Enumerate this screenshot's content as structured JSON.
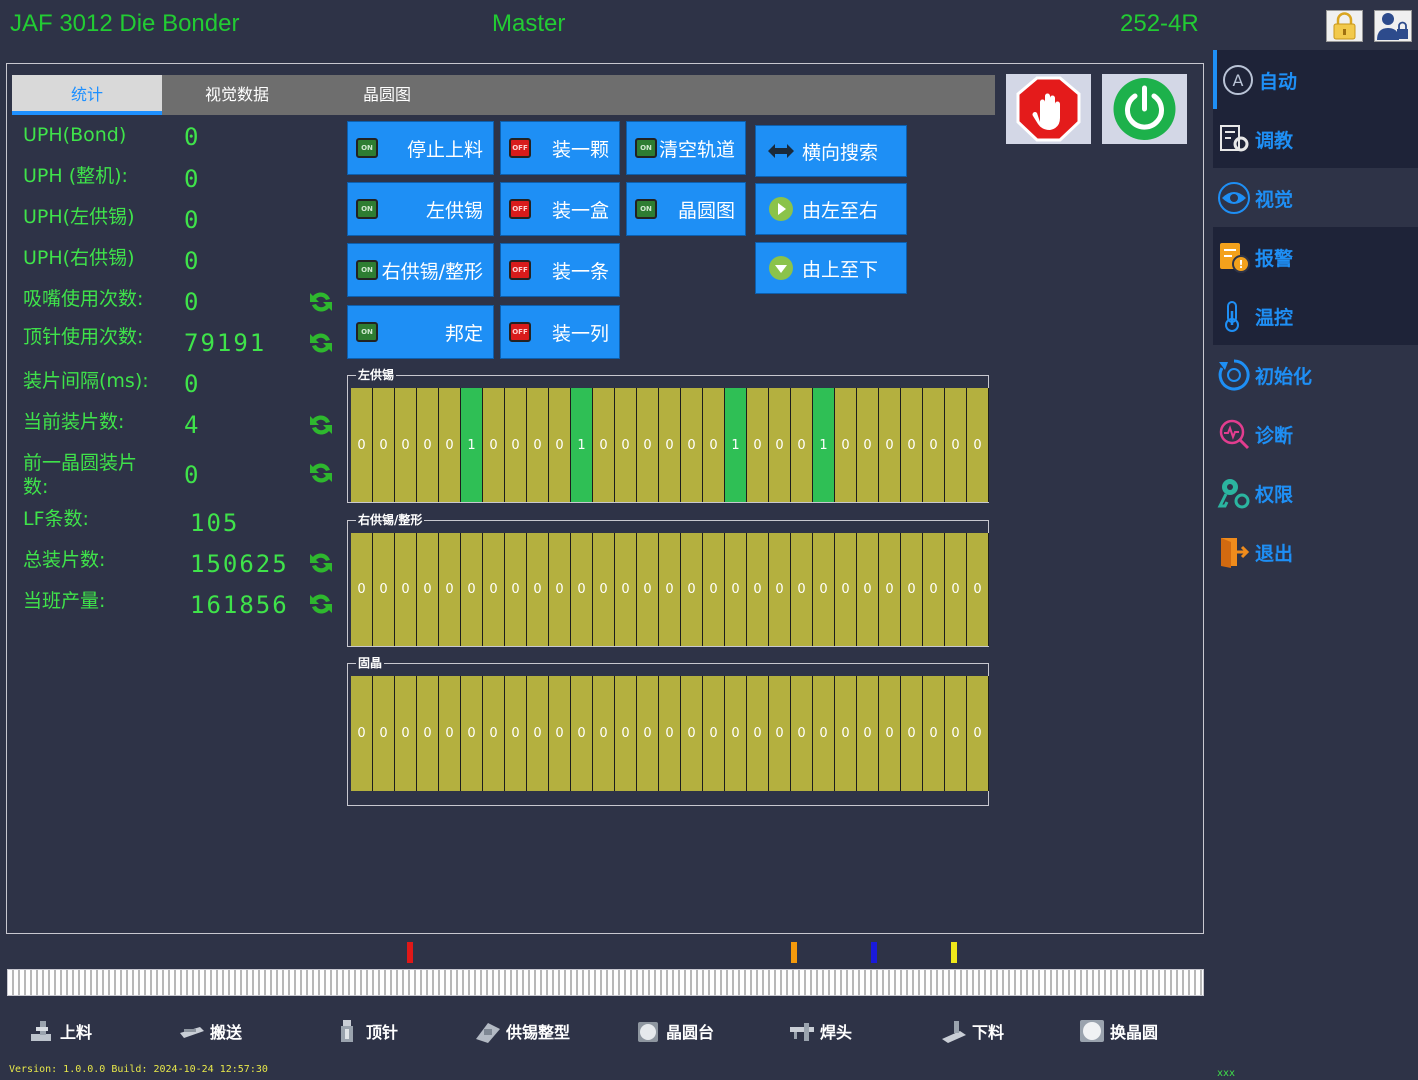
{
  "header": {
    "title": "JAF 3012 Die Bonder",
    "mode": "Master",
    "model": "252-4R",
    "lock_icon": "lock-icon",
    "user_icon": "user-lock-icon"
  },
  "tabs": [
    {
      "label": "统计",
      "active": true
    },
    {
      "label": "视觉数据",
      "active": false
    },
    {
      "label": "晶圆图",
      "active": false
    }
  ],
  "stats": [
    {
      "label": "UPH(Bond)",
      "value": "0",
      "refresh": false
    },
    {
      "label": "UPH (整机):",
      "value": "0",
      "refresh": false
    },
    {
      "label": "UPH(左供锡)",
      "value": "0",
      "refresh": false
    },
    {
      "label": "UPH(右供锡)",
      "value": "0",
      "refresh": false
    },
    {
      "label": "吸嘴使用次数:",
      "value": "0",
      "refresh": true
    },
    {
      "label": "顶针使用次数:",
      "value": "79191",
      "refresh": true
    },
    {
      "label": "装片间隔(ms):",
      "value": "0",
      "refresh": false
    },
    {
      "label": "当前装片数:",
      "value": "4",
      "refresh": true
    },
    {
      "label": "前一晶圆装片数:",
      "value": "0",
      "refresh": true
    },
    {
      "label": "LF条数:",
      "value": "105",
      "refresh": false
    },
    {
      "label": "总装片数:",
      "value": "150625",
      "refresh": true
    },
    {
      "label": "当班产量:",
      "value": "161856",
      "refresh": true
    }
  ],
  "toggles": {
    "stop_feed": {
      "label": "停止上料",
      "state": "ON"
    },
    "left_solder": {
      "label": "左供锡",
      "state": "ON"
    },
    "right_solder": {
      "label": "右供锡/整形",
      "state": "ON"
    },
    "bond": {
      "label": "邦定",
      "state": "ON"
    },
    "load_one": {
      "label": "装一颗",
      "state": "OFF"
    },
    "load_box": {
      "label": "装一盒",
      "state": "OFF"
    },
    "load_strip": {
      "label": "装一条",
      "state": "OFF"
    },
    "load_column": {
      "label": "装一列",
      "state": "OFF"
    },
    "clear_track": {
      "label": "清空轨道",
      "state": "ON"
    },
    "wafer_map": {
      "label": "晶圆图",
      "state": "ON"
    }
  },
  "nav_buttons": {
    "horizontal_search": "横向搜索",
    "left_to_right": "由左至右",
    "top_to_bottom": "由上至下"
  },
  "groups": {
    "left_solder": {
      "title": "左供锡",
      "slots": [
        0,
        0,
        0,
        0,
        0,
        1,
        0,
        0,
        0,
        0,
        1,
        0,
        0,
        0,
        0,
        0,
        0,
        1,
        0,
        0,
        0,
        1,
        0,
        0,
        0,
        0,
        0,
        0,
        0
      ]
    },
    "right_solder": {
      "title": "右供锡/整形",
      "slots": [
        0,
        0,
        0,
        0,
        0,
        0,
        0,
        0,
        0,
        0,
        0,
        0,
        0,
        0,
        0,
        0,
        0,
        0,
        0,
        0,
        0,
        0,
        0,
        0,
        0,
        0,
        0,
        0,
        0
      ]
    },
    "die_bond": {
      "title": "固晶",
      "slots": [
        0,
        0,
        0,
        0,
        0,
        0,
        0,
        0,
        0,
        0,
        0,
        0,
        0,
        0,
        0,
        0,
        0,
        0,
        0,
        0,
        0,
        0,
        0,
        0,
        0,
        0,
        0,
        0,
        0
      ]
    }
  },
  "sidebar": [
    {
      "label": "自动",
      "icon": "auto-icon"
    },
    {
      "label": "调教",
      "icon": "settings-icon"
    },
    {
      "label": "视觉",
      "icon": "eye-icon"
    },
    {
      "label": "报警",
      "icon": "alarm-icon"
    },
    {
      "label": "温控",
      "icon": "thermometer-icon"
    },
    {
      "label": "初始化",
      "icon": "init-icon"
    },
    {
      "label": "诊断",
      "icon": "diagnose-icon"
    },
    {
      "label": "权限",
      "icon": "key-icon"
    },
    {
      "label": "退出",
      "icon": "exit-icon"
    }
  ],
  "markers": {
    "colors": [
      "#e01818",
      "#f59a0c",
      "#1a1adb",
      "#f0e81a"
    ]
  },
  "toolbar": [
    {
      "label": "上料",
      "icon": "loader-icon"
    },
    {
      "label": "搬送",
      "icon": "transfer-icon"
    },
    {
      "label": "顶针",
      "icon": "ejector-pin-icon"
    },
    {
      "label": "供锡整型",
      "icon": "solder-feed-icon"
    },
    {
      "label": "晶圆台",
      "icon": "wafer-table-icon"
    },
    {
      "label": "焊头",
      "icon": "bond-head-icon"
    },
    {
      "label": "下料",
      "icon": "unloader-icon"
    },
    {
      "label": "换晶圆",
      "icon": "wafer-change-icon"
    }
  ],
  "footer": {
    "version": "Version: 1.0.0.0 Build: 2024-10-24 12:57:30",
    "right_text": "xxx"
  },
  "colors": {
    "accent": "#1e8ff5",
    "status_green": "#3fe34a",
    "slot_yellow": "#b4b03f",
    "slot_green": "#2fbf55"
  }
}
